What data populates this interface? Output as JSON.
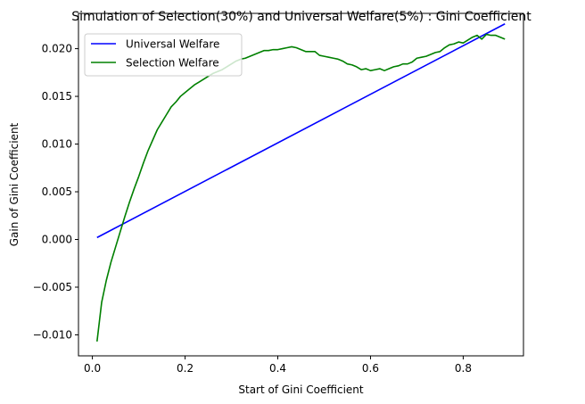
{
  "chart_data": {
    "type": "line",
    "title": "Simulation of Selection(30%) and Universal Welfare(5%) : Gini Coefficient",
    "xlabel": "Start of Gini Coefficient",
    "ylabel": "Gain of Gini Coefficient",
    "xlim": [
      -0.03,
      0.93
    ],
    "ylim": [
      -0.0122,
      0.0237
    ],
    "xticks": [
      0.0,
      0.2,
      0.4,
      0.6,
      0.8
    ],
    "xtick_labels": [
      "0.0",
      "0.2",
      "0.4",
      "0.6",
      "0.8"
    ],
    "yticks": [
      -0.01,
      -0.005,
      0.0,
      0.005,
      0.01,
      0.015,
      0.02
    ],
    "ytick_labels": [
      "−0.010",
      "−0.005",
      "0.000",
      "0.005",
      "0.010",
      "0.015",
      "0.020"
    ],
    "grid": false,
    "legend": "top-left",
    "series": [
      {
        "name": "Universal Welfare",
        "color": "#0000ff",
        "x": [
          0.01,
          0.89
        ],
        "y": [
          0.0002,
          0.0226
        ]
      },
      {
        "name": "Selection Welfare",
        "color": "#008000",
        "x": [
          0.01,
          0.02,
          0.03,
          0.04,
          0.05,
          0.06,
          0.07,
          0.08,
          0.09,
          0.1,
          0.11,
          0.12,
          0.13,
          0.14,
          0.15,
          0.16,
          0.17,
          0.18,
          0.19,
          0.2,
          0.21,
          0.22,
          0.23,
          0.24,
          0.25,
          0.26,
          0.27,
          0.28,
          0.29,
          0.3,
          0.31,
          0.32,
          0.33,
          0.34,
          0.35,
          0.36,
          0.37,
          0.38,
          0.39,
          0.4,
          0.41,
          0.42,
          0.43,
          0.44,
          0.45,
          0.46,
          0.47,
          0.48,
          0.49,
          0.5,
          0.51,
          0.52,
          0.53,
          0.54,
          0.55,
          0.56,
          0.57,
          0.58,
          0.59,
          0.6,
          0.61,
          0.62,
          0.63,
          0.64,
          0.65,
          0.66,
          0.67,
          0.68,
          0.69,
          0.7,
          0.71,
          0.72,
          0.73,
          0.74,
          0.75,
          0.76,
          0.77,
          0.78,
          0.79,
          0.8,
          0.81,
          0.82,
          0.83,
          0.84,
          0.85,
          0.86,
          0.87,
          0.88,
          0.89
        ],
        "y": [
          -0.0107,
          -0.0066,
          -0.0043,
          -0.0024,
          -0.0008,
          0.0008,
          0.0024,
          0.0039,
          0.0053,
          0.0066,
          0.008,
          0.0093,
          0.0104,
          0.0115,
          0.0123,
          0.0131,
          0.0139,
          0.0144,
          0.015,
          0.0154,
          0.0158,
          0.0162,
          0.0165,
          0.0168,
          0.0171,
          0.0174,
          0.0176,
          0.0178,
          0.0181,
          0.0184,
          0.0187,
          0.0189,
          0.019,
          0.0192,
          0.0194,
          0.0196,
          0.0198,
          0.0198,
          0.0199,
          0.0199,
          0.02,
          0.0201,
          0.0202,
          0.0201,
          0.0199,
          0.0197,
          0.0197,
          0.0197,
          0.0193,
          0.0192,
          0.0191,
          0.019,
          0.0189,
          0.0187,
          0.0184,
          0.0183,
          0.0181,
          0.0178,
          0.0179,
          0.0177,
          0.0178,
          0.0179,
          0.0177,
          0.0179,
          0.0181,
          0.0182,
          0.0184,
          0.0184,
          0.0186,
          0.019,
          0.0191,
          0.0192,
          0.0194,
          0.0196,
          0.0197,
          0.0201,
          0.0204,
          0.0205,
          0.0207,
          0.0206,
          0.0209,
          0.0212,
          0.0214,
          0.021,
          0.0215,
          0.0214,
          0.0214,
          0.0212,
          0.021
        ]
      }
    ]
  }
}
